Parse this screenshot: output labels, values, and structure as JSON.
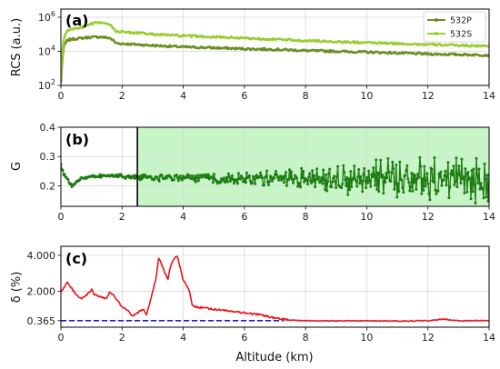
{
  "chart_data": [
    {
      "panel": "(a)",
      "type": "line",
      "ylabel": "RCS (a.u.)",
      "yscale": "log",
      "ylim": [
        100,
        3000000
      ],
      "xlim": [
        0,
        14
      ],
      "yticks": [
        {
          "v": 100,
          "b": "10",
          "e": "2"
        },
        {
          "v": 10000,
          "b": "10",
          "e": "4"
        },
        {
          "v": 1000000,
          "b": "10",
          "e": "6"
        }
      ],
      "xticks": [
        "0",
        "2",
        "4",
        "6",
        "8",
        "10",
        "12",
        "14"
      ],
      "grid": true,
      "legend": "top-right",
      "series": [
        {
          "name": "532P",
          "color": "#6b8e23",
          "x": [
            0,
            0.05,
            0.1,
            0.2,
            0.3,
            0.5,
            0.7,
            1.0,
            1.3,
            1.6,
            1.8,
            2.0,
            2.5,
            3.0,
            4.0,
            5.0,
            6.0,
            7.0,
            8.0,
            10.0,
            12.0,
            14.0
          ],
          "y": [
            150,
            2000,
            20000,
            40000,
            50000,
            55000,
            60000,
            68000,
            70000,
            60000,
            30000,
            28000,
            25000,
            22000,
            18000,
            16000,
            14000,
            13000,
            11000,
            9000,
            7000,
            6000
          ]
        },
        {
          "name": "532S",
          "color": "#9acd32",
          "x": [
            0,
            0.05,
            0.1,
            0.2,
            0.3,
            0.5,
            0.7,
            1.0,
            1.3,
            1.6,
            1.8,
            2.0,
            2.5,
            3.0,
            4.0,
            5.0,
            6.0,
            7.0,
            8.0,
            10.0,
            12.0,
            14.0
          ],
          "y": [
            200,
            5000,
            50000,
            150000,
            200000,
            220000,
            250000,
            400000,
            500000,
            350000,
            150000,
            140000,
            120000,
            100000,
            80000,
            70000,
            60000,
            50000,
            42000,
            32000,
            25000,
            20000
          ]
        }
      ]
    },
    {
      "panel": "(b)",
      "type": "line",
      "ylabel": "G",
      "ylim": [
        0.13,
        0.4
      ],
      "xlim": [
        0,
        14
      ],
      "yticks": [
        "0.2",
        "0.3",
        "0.4"
      ],
      "xticks": [
        "0",
        "2",
        "4",
        "6",
        "8",
        "10",
        "12",
        "14"
      ],
      "grid": true,
      "shaded_region_x": [
        2.5,
        14
      ],
      "vertical_line_x": 2.5,
      "series": [
        {
          "color": "#1e7d12",
          "x": [
            0,
            0.1,
            0.2,
            0.3,
            0.4,
            0.5,
            0.7,
            1.0,
            1.5,
            2.0,
            2.5,
            3,
            4,
            5,
            6,
            7,
            8,
            9,
            10,
            11,
            12,
            13,
            14
          ],
          "y": [
            0.27,
            0.24,
            0.22,
            0.205,
            0.2,
            0.215,
            0.225,
            0.23,
            0.235,
            0.232,
            0.23,
            0.228,
            0.227,
            0.226,
            0.225,
            0.225,
            0.226,
            0.225,
            0.225,
            0.226,
            0.225,
            0.226,
            0.225
          ],
          "spread": [
            0.01,
            0.01,
            0.01,
            0.006,
            0.006,
            0.006,
            0.006,
            0.006,
            0.007,
            0.008,
            0.01,
            0.012,
            0.015,
            0.02,
            0.025,
            0.035,
            0.045,
            0.06,
            0.07,
            0.08,
            0.085,
            0.09,
            0.1
          ]
        }
      ]
    },
    {
      "panel": "(c)",
      "type": "line",
      "ylabel": "δ (%)",
      "ylim": [
        0,
        4.5
      ],
      "xlim": [
        0,
        14
      ],
      "xlabel": "Altitude (km)",
      "yticks": [
        "0.365",
        "2.000",
        "4.000"
      ],
      "ytick_values": [
        0.365,
        2.0,
        4.0
      ],
      "xticks": [
        "0",
        "2",
        "4",
        "6",
        "8",
        "10",
        "12",
        "14"
      ],
      "grid": true,
      "reference_line": {
        "value": 0.365,
        "color": "#1f1fcc",
        "style": "dashed",
        "x": [
          0,
          7.3
        ]
      },
      "series": [
        {
          "color": "#e8141a",
          "x": [
            0,
            0.1,
            0.2,
            0.3,
            0.5,
            0.7,
            0.9,
            1.0,
            1.1,
            1.3,
            1.5,
            1.6,
            1.8,
            2.0,
            2.2,
            2.35,
            2.5,
            2.7,
            2.8,
            2.9,
            3.0,
            3.1,
            3.2,
            3.3,
            3.4,
            3.5,
            3.6,
            3.7,
            3.8,
            3.9,
            4.0,
            4.1,
            4.2,
            4.3,
            4.5,
            5.0,
            5.5,
            6.0,
            6.5,
            7.0,
            7.5,
            8.0,
            9.0,
            10.0,
            11.0,
            12.0,
            12.5,
            13.0,
            14.0
          ],
          "y": [
            2.0,
            2.2,
            2.5,
            2.3,
            1.8,
            1.6,
            1.9,
            2.1,
            1.8,
            1.7,
            1.6,
            2.0,
            1.6,
            1.1,
            0.9,
            0.6,
            0.8,
            1.0,
            0.7,
            1.3,
            2.0,
            2.6,
            3.9,
            3.5,
            3.0,
            2.7,
            3.5,
            3.8,
            4.0,
            3.3,
            2.6,
            2.4,
            2.0,
            1.2,
            1.1,
            1.0,
            0.9,
            0.8,
            0.7,
            0.5,
            0.4,
            0.36,
            0.35,
            0.36,
            0.34,
            0.36,
            0.45,
            0.35,
            0.38
          ]
        }
      ]
    }
  ]
}
